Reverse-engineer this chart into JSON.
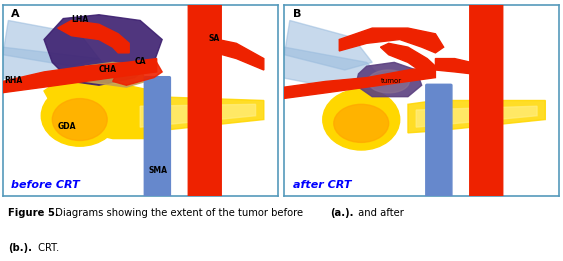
{
  "fig_width": 5.63,
  "fig_height": 2.61,
  "dpi": 100,
  "background_color": "#ffffff",
  "border_color": "#5599bb",
  "panel_A_label": "A",
  "panel_B_label": "B",
  "before_crt_text": "before CRT",
  "after_crt_text": "after CRT",
  "label_color": "#0000ff",
  "label_LHA": "LHA",
  "label_RHA": "RHA",
  "label_CHA": "CHA",
  "label_CA": "CA",
  "label_SA": "SA",
  "label_GDA": "GDA",
  "label_SMA": "SMA",
  "label_tumor": "tumor",
  "caption_fig": "Figure 5.",
  "caption_rest1": " Diagrams showing the extent of the tumor before ",
  "caption_bold1": "(a.).",
  "caption_rest2": " and after",
  "caption_bold2": "(b.).",
  "caption_rest3": " CRT.",
  "tumor_color_A": "#3D2070",
  "tumor_color_B_outer": "#5B4080",
  "tumor_color_B_inner": "#8B7090",
  "pancreas_yellow": "#FFD700",
  "pancreas_orange": "#FFA500",
  "pancreas_light": "#FFEE80",
  "artery_red": "#EE2200",
  "vein_blue": "#6688CC",
  "vessel_bg_blue": "#99BBDD",
  "overlap_tan": "#C4A055",
  "white": "#ffffff"
}
